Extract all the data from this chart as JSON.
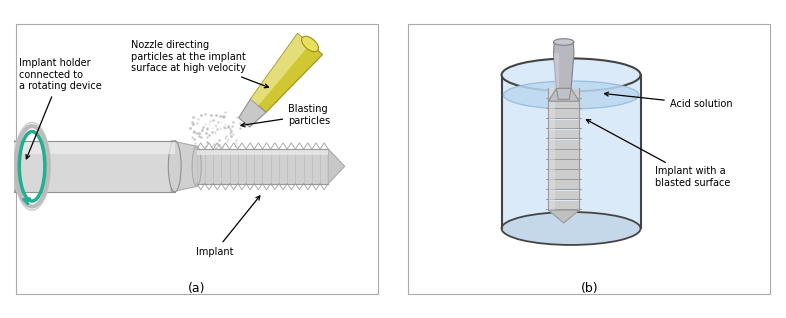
{
  "bg_color": "#ffffff",
  "panel_a_label": "(a)",
  "panel_b_label": "(b)",
  "labels_a": {
    "nozzle": "Nozzle directing\nparticles at the implant\nsurface at high velocity",
    "holder": "Implant holder\nconnected to\na rotating device",
    "blasting": "Blasting\nparticles",
    "implant": "Implant"
  },
  "labels_b": {
    "acid": "Acid solution",
    "implant": "Implant with a\nblasted surface"
  },
  "implant_light": "#d8d8d8",
  "implant_mid": "#c0c0c0",
  "implant_dark": "#a0a0a0",
  "nozzle_yellow": "#cfc832",
  "nozzle_yellow2": "#e8e060",
  "nozzle_white": "#f8f5c0",
  "container_fill": "#daeaf8",
  "container_edge": "#444444",
  "teal_color": "#20b090"
}
